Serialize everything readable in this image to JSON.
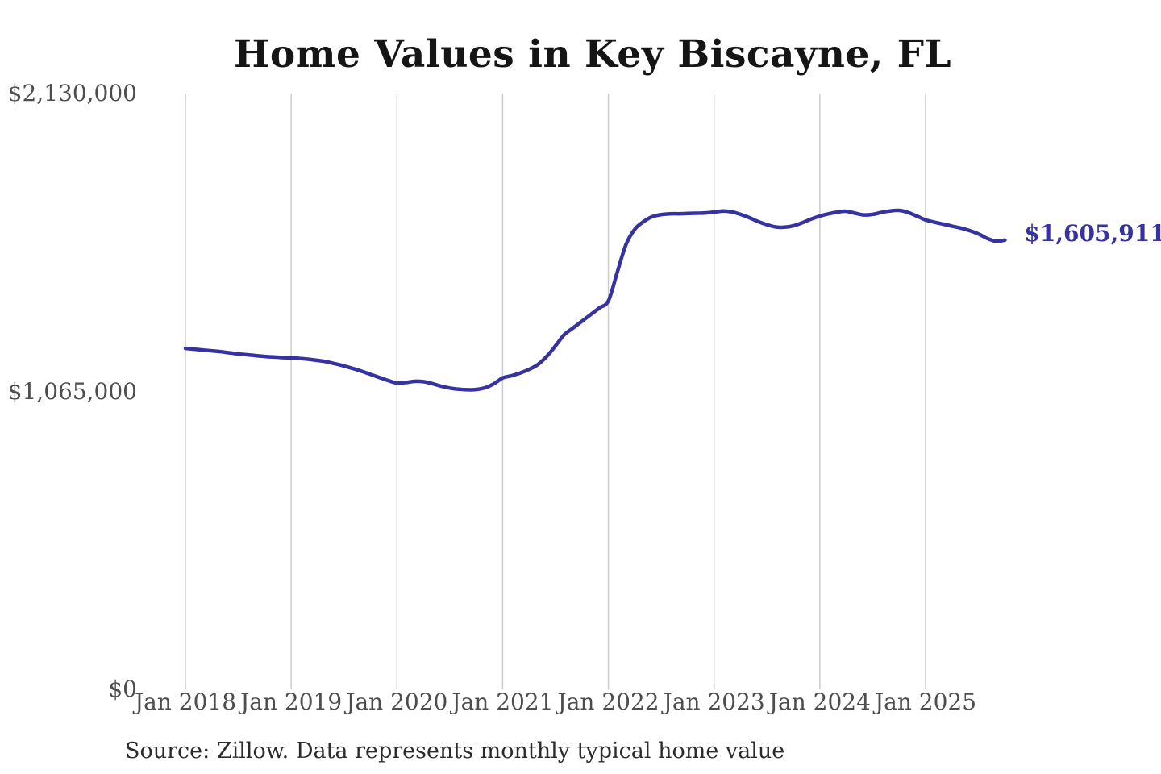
{
  "title": "Home Values in Key Biscayne, FL",
  "source_note": "Source: Zillow. Data represents monthly typical home value",
  "end_label": "$1,605,911",
  "colors": {
    "line": "#3632a0",
    "end_label_text": "#3632a0",
    "grid": "#cccccc",
    "axis_text": "#4d4d4d",
    "title_text": "#151515",
    "background": "#ffffff"
  },
  "chart_data": {
    "type": "line",
    "title": "Home Values in Key Biscayne, FL",
    "xlabel": "",
    "ylabel": "",
    "grid": "vertical-only",
    "legend": "none",
    "ylim": [
      0,
      2130000
    ],
    "yticks": [
      {
        "value": 0,
        "label": "$0"
      },
      {
        "value": 1065000,
        "label": "$1,065,000"
      },
      {
        "value": 2130000,
        "label": "$2,130,000"
      }
    ],
    "xtick_labels": [
      "Jan 2018",
      "Jan 2019",
      "Jan 2020",
      "Jan 2021",
      "Jan 2022",
      "Jan 2023",
      "Jan 2024",
      "Jan 2025"
    ],
    "months_per_tick": 12,
    "x_start": "2018-01",
    "x_end": "2025-10",
    "last_value": 1605911,
    "last_value_label": "$1,605,911",
    "values": [
      1219000,
      1216000,
      1213000,
      1210000,
      1207000,
      1203000,
      1199000,
      1196000,
      1193000,
      1190000,
      1188000,
      1186000,
      1185000,
      1183000,
      1180000,
      1176000,
      1171000,
      1164000,
      1156000,
      1147000,
      1137000,
      1126000,
      1115000,
      1104000,
      1095000,
      1097000,
      1101000,
      1100000,
      1093000,
      1084000,
      1077000,
      1073000,
      1071000,
      1072000,
      1078000,
      1092000,
      1113000,
      1121000,
      1131000,
      1144000,
      1161000,
      1190000,
      1228000,
      1268000,
      1292000,
      1316000,
      1340000,
      1364000,
      1389000,
      1490000,
      1590000,
      1645000,
      1672000,
      1690000,
      1697000,
      1700000,
      1700000,
      1701000,
      1702000,
      1703000,
      1706000,
      1710000,
      1707000,
      1698000,
      1686000,
      1672000,
      1661000,
      1653000,
      1652000,
      1657000,
      1668000,
      1681000,
      1692000,
      1700000,
      1706000,
      1709000,
      1702000,
      1696000,
      1698000,
      1705000,
      1710000,
      1712000,
      1705000,
      1692000,
      1678000,
      1670000,
      1663000,
      1656000,
      1649000,
      1640000,
      1628000,
      1612000,
      1602000,
      1605911
    ]
  }
}
